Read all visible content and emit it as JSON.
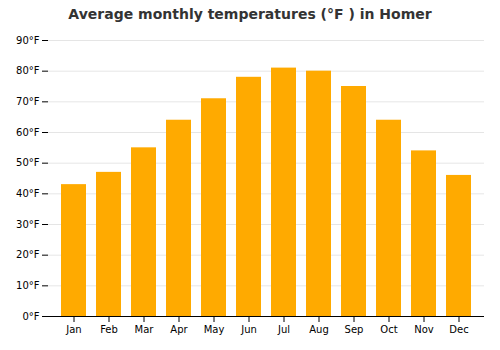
{
  "chart_data": {
    "type": "bar",
    "title": "Average monthly temperatures (°F ) in Homer",
    "categories": [
      "Jan",
      "Feb",
      "Mar",
      "Apr",
      "May",
      "Jun",
      "Jul",
      "Aug",
      "Sep",
      "Oct",
      "Nov",
      "Dec"
    ],
    "values": [
      43,
      47,
      55,
      64,
      71,
      78,
      81,
      80,
      75,
      64,
      54,
      46
    ],
    "color": "#FFAA00",
    "ylim": [
      0,
      90
    ],
    "yticks": [
      {
        "value": 0,
        "label": "0°F"
      },
      {
        "value": 10,
        "label": "10°F"
      },
      {
        "value": 20,
        "label": "20°F"
      },
      {
        "value": 30,
        "label": "30°F"
      },
      {
        "value": 40,
        "label": "40°F"
      },
      {
        "value": 50,
        "label": "50°F"
      },
      {
        "value": 60,
        "label": "60°F"
      },
      {
        "value": 70,
        "label": "70°F"
      },
      {
        "value": 80,
        "label": "80°F"
      },
      {
        "value": 90,
        "label": "90°F"
      }
    ],
    "grid": true
  }
}
